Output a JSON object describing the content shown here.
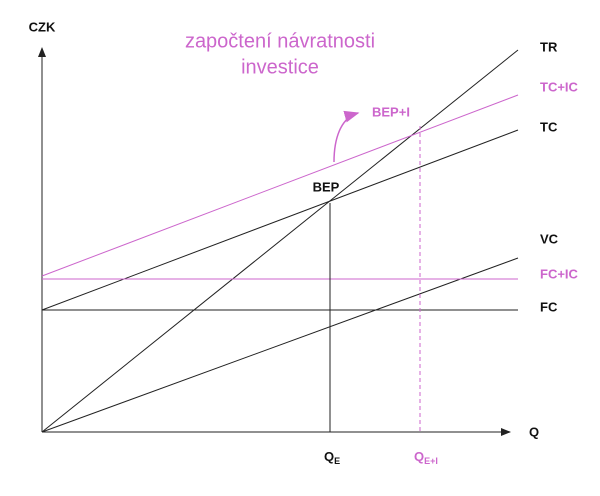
{
  "title": [
    "započtení návratnosti",
    "investice"
  ],
  "axes": {
    "y": "CZK",
    "x": "Q"
  },
  "lines": [
    {
      "label": "TR"
    },
    {
      "label": "TC+IC"
    },
    {
      "label": "TC"
    },
    {
      "label": "VC"
    },
    {
      "label": "FC+IC"
    },
    {
      "label": "FC"
    }
  ],
  "points": [
    {
      "label": "BEP"
    },
    {
      "label": "BEP+I"
    }
  ],
  "ticks": [
    {
      "label": "Q",
      "sub": "E"
    },
    {
      "label": "Q",
      "sub": "E+I"
    }
  ]
}
